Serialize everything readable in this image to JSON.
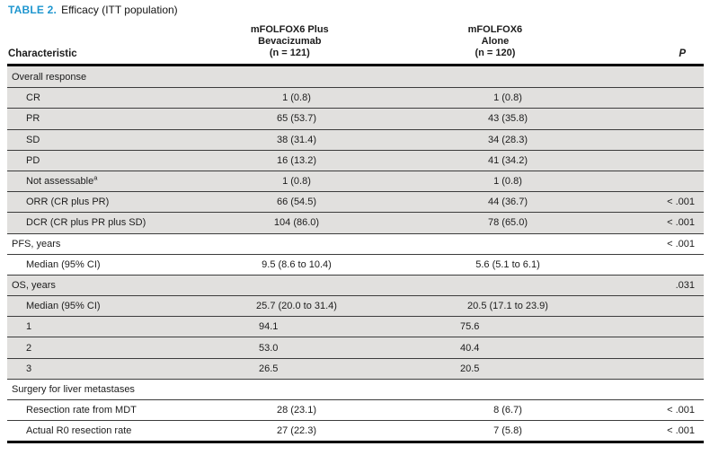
{
  "caption": {
    "label": "TABLE 2.",
    "title": "Efficacy (ITT population)"
  },
  "colors": {
    "accent_blue": "#1e96cf",
    "row_shading": "#e1e0de",
    "rule": "#000000"
  },
  "table": {
    "columns": {
      "characteristic": "Characteristic",
      "arm1_lines": [
        "mFOLFOX6 Plus",
        "Bevacizumab",
        "(n = 121)"
      ],
      "arm2_lines": [
        "mFOLFOX6",
        "Alone",
        "(n = 120)"
      ],
      "p": "P"
    },
    "rows": [
      {
        "label": "Overall response",
        "section": true,
        "shaded": true,
        "arm1": "",
        "arm2": "",
        "p": ""
      },
      {
        "label": "CR",
        "section": false,
        "shaded": true,
        "arm1": "1 (0.8)",
        "arm2": "1 (0.8)",
        "p": ""
      },
      {
        "label": "PR",
        "section": false,
        "shaded": true,
        "arm1": "65 (53.7)",
        "arm2": "43 (35.8)",
        "p": ""
      },
      {
        "label": "SD",
        "section": false,
        "shaded": true,
        "arm1": "38 (31.4)",
        "arm2": "34 (28.3)",
        "p": ""
      },
      {
        "label": "PD",
        "section": false,
        "shaded": true,
        "arm1": "16 (13.2)",
        "arm2": "41 (34.2)",
        "p": ""
      },
      {
        "label": "Not assessable",
        "sup": "a",
        "section": false,
        "shaded": true,
        "arm1": "1 (0.8)",
        "arm2": "1 (0.8)",
        "p": ""
      },
      {
        "label": "ORR (CR plus PR)",
        "section": false,
        "shaded": true,
        "arm1": "66 (54.5)",
        "arm2": "44 (36.7)",
        "p": "< .001"
      },
      {
        "label": "DCR (CR plus PR plus SD)",
        "section": false,
        "shaded": true,
        "arm1": "104 (86.0)",
        "arm2": "78 (65.0)",
        "p": "< .001"
      },
      {
        "label": "PFS, years",
        "section": true,
        "shaded": false,
        "arm1": "",
        "arm2": "",
        "p": "< .001"
      },
      {
        "label": "Median (95% CI)",
        "section": false,
        "shaded": false,
        "arm1": "9.5 (8.6 to 10.4)",
        "arm2": "5.6 (5.1 to 6.1)",
        "p": ""
      },
      {
        "label": "OS, years",
        "section": true,
        "shaded": true,
        "arm1": "",
        "arm2": "",
        "p": ".031"
      },
      {
        "label": "Median (95% CI)",
        "section": false,
        "shaded": true,
        "arm1": "25.7 (20.0 to 31.4)",
        "arm2": "20.5 (17.1 to 23.9)",
        "p": ""
      },
      {
        "label": "1",
        "section": false,
        "shaded": true,
        "arm1": "94.1",
        "arm2": "75.6",
        "p": "",
        "align": "left"
      },
      {
        "label": "2",
        "section": false,
        "shaded": true,
        "arm1": "53.0",
        "arm2": "40.4",
        "p": "",
        "align": "left"
      },
      {
        "label": "3",
        "section": false,
        "shaded": true,
        "arm1": "26.5",
        "arm2": "20.5",
        "p": "",
        "align": "left"
      },
      {
        "label": "Surgery for liver metastases",
        "section": true,
        "shaded": false,
        "arm1": "",
        "arm2": "",
        "p": ""
      },
      {
        "label": "Resection rate from MDT",
        "section": false,
        "shaded": false,
        "arm1": "28 (23.1)",
        "arm2": "8 (6.7)",
        "p": "< .001"
      },
      {
        "label": "Actual R0 resection rate",
        "section": false,
        "shaded": false,
        "arm1": "27 (22.3)",
        "arm2": "7 (5.8)",
        "p": "< .001"
      }
    ]
  }
}
